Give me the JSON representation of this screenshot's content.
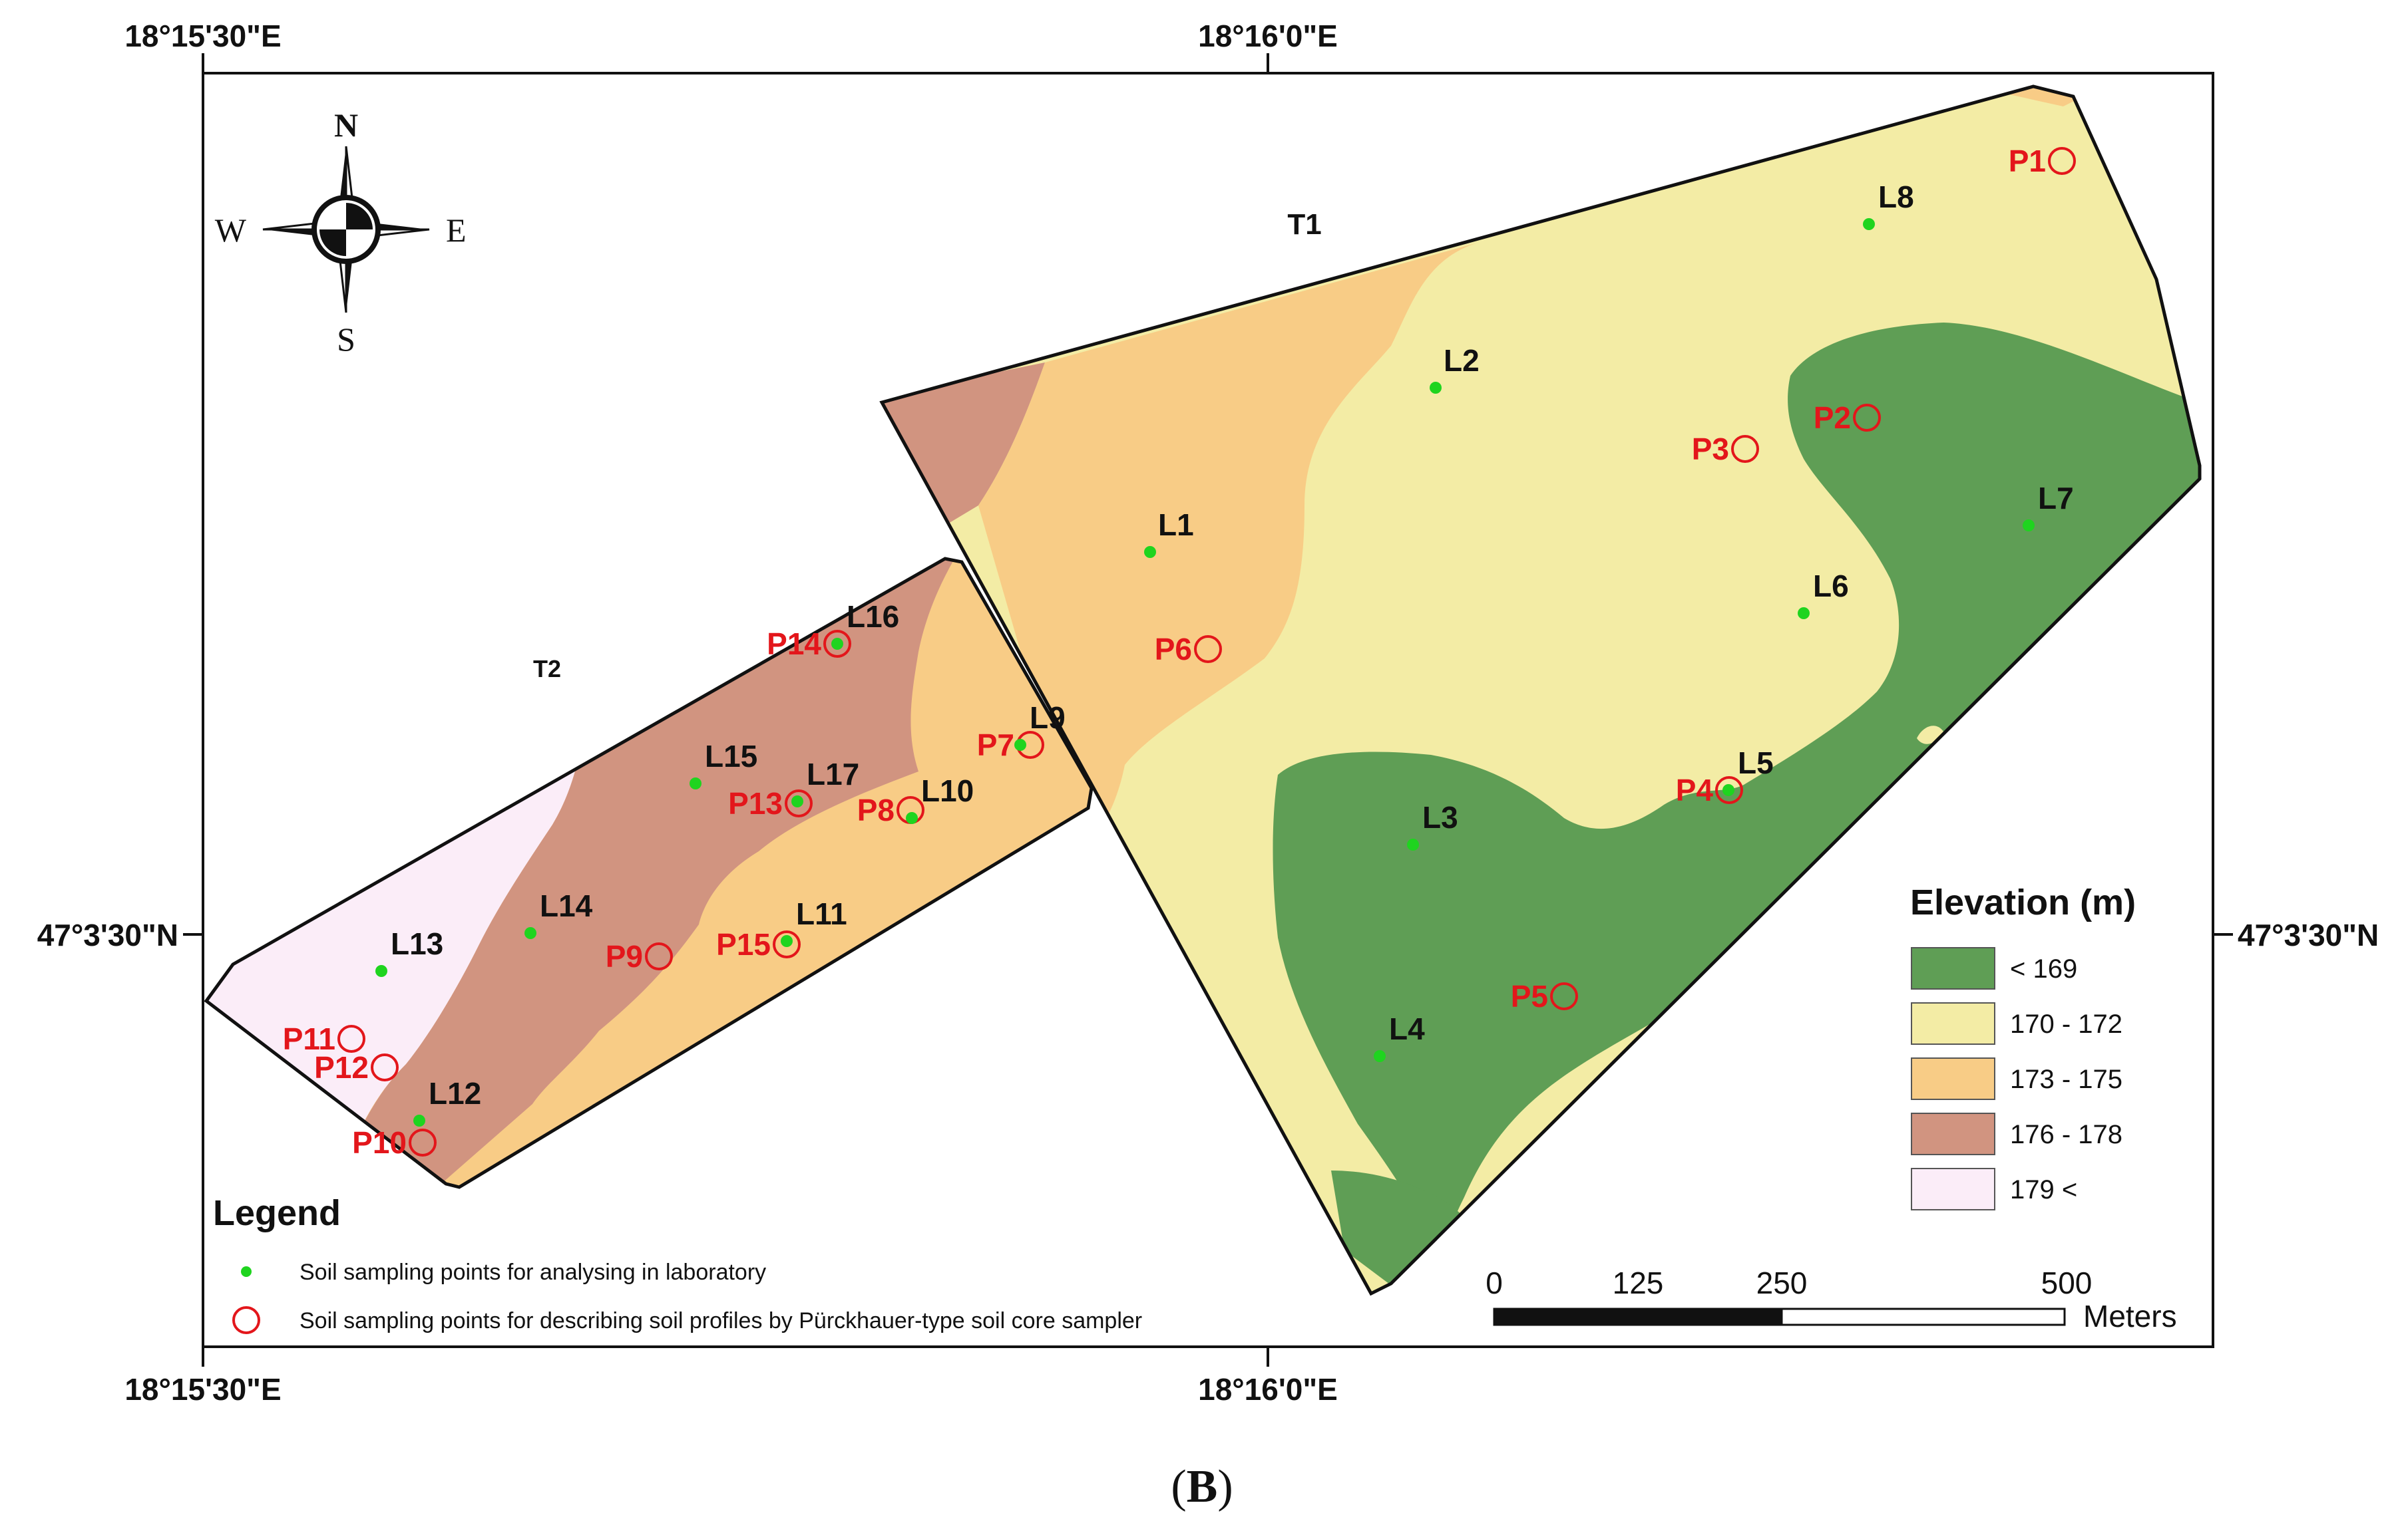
{
  "coordinates": {
    "top_left": "18°15'30\"E",
    "top_center": "18°16'0\"E",
    "bottom_left": "18°15'30\"E",
    "bottom_center": "18°16'0\"E",
    "left": "47°3'30\"N",
    "right": "47°3'30\"N"
  },
  "compass": {
    "n": "N",
    "s": "S",
    "e": "E",
    "w": "W",
    "icon": "compass-rose-icon"
  },
  "areas": {
    "t1": "T1",
    "t2": "T2"
  },
  "lab_points": [
    "L1",
    "L2",
    "L3",
    "L4",
    "L5",
    "L6",
    "L7",
    "L8",
    "L9",
    "L10",
    "L11",
    "L12",
    "L13",
    "L14",
    "L15",
    "L16",
    "L17"
  ],
  "profile_points": [
    "P1",
    "P2",
    "P3",
    "P4",
    "P5",
    "P6",
    "P7",
    "P8",
    "P9",
    "P10",
    "P11",
    "P12",
    "P13",
    "P14",
    "P15"
  ],
  "elevation_legend": {
    "title": "Elevation (m)",
    "classes": [
      {
        "label": "< 169",
        "color": "#5f9e55"
      },
      {
        "label": "170 - 172",
        "color": "#f3eca5"
      },
      {
        "label": "173 - 175",
        "color": "#f8cc86"
      },
      {
        "label": "176 - 178",
        "color": "#d19480"
      },
      {
        "label": "179 <",
        "color": "#fbedf8"
      }
    ]
  },
  "legend": {
    "title": "Legend",
    "lab_label": "Soil sampling points for analysing in laboratory",
    "profile_label": "Soil sampling points for describing soil profiles by Pürckhauer-type soil core sampler",
    "lab_color": "#1fd41f",
    "profile_color": "#e3161b"
  },
  "scale_bar": {
    "ticks": [
      "0",
      "125",
      "250",
      "500"
    ],
    "unit": "Meters"
  },
  "caption": "(B)"
}
